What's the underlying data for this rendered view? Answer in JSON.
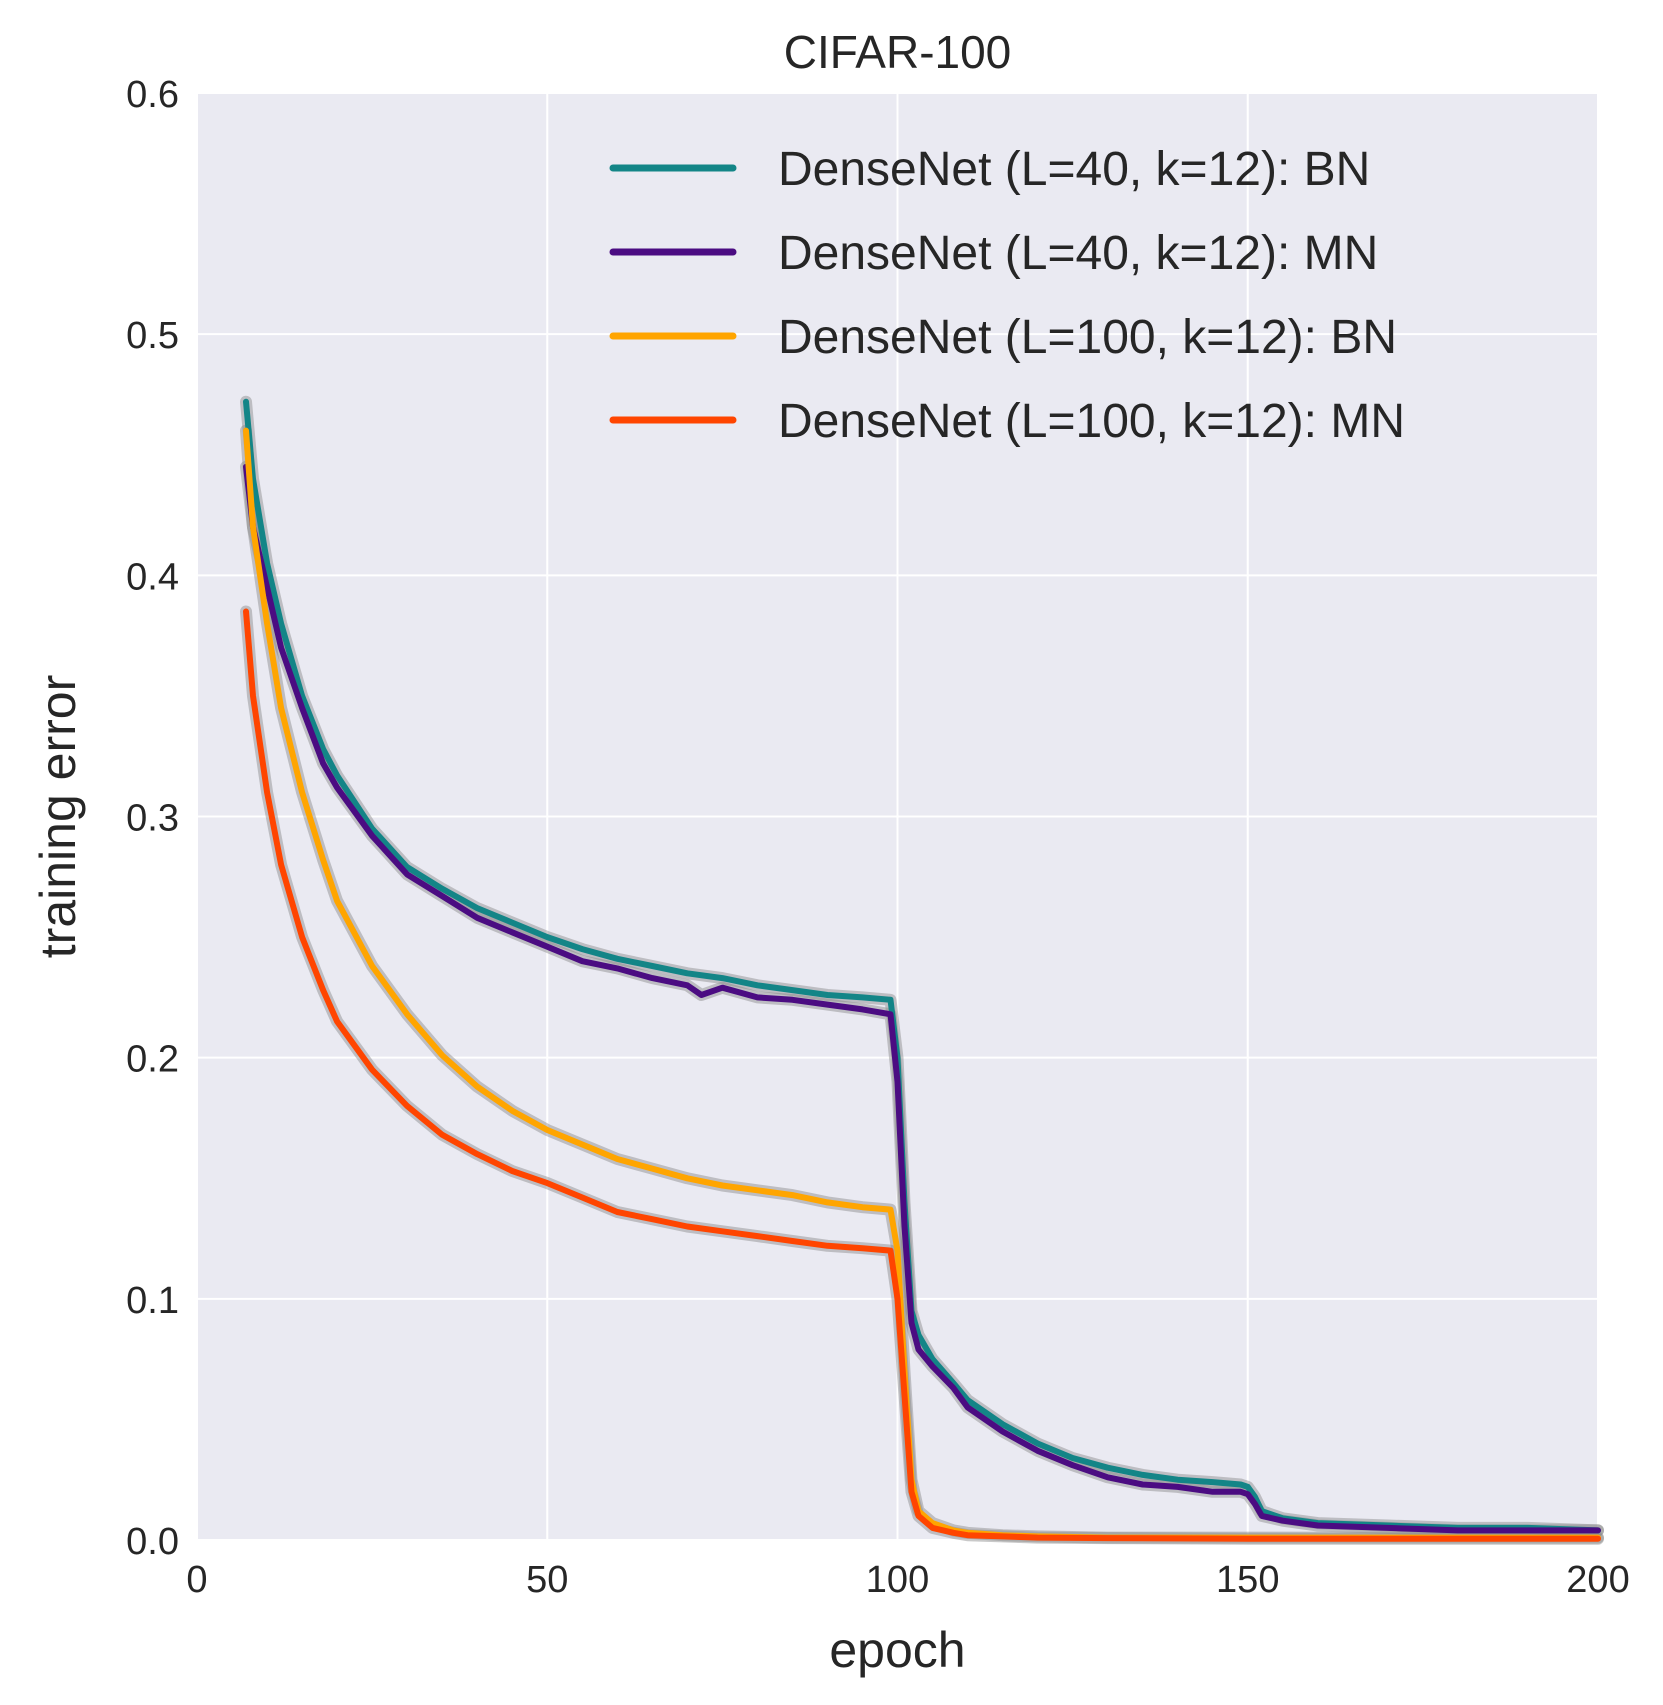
{
  "chart_data": {
    "type": "line",
    "title": "CIFAR-100",
    "xlabel": "epoch",
    "ylabel": "training error",
    "xlim": [
      0,
      200
    ],
    "ylim": [
      0.0,
      0.6
    ],
    "xticks": [
      0,
      50,
      100,
      150,
      200
    ],
    "xtick_labels": [
      "0",
      "50",
      "100",
      "150",
      "200"
    ],
    "yticks": [
      0.0,
      0.1,
      0.2,
      0.3,
      0.4,
      0.5,
      0.6
    ],
    "ytick_labels": [
      "0.0",
      "0.1",
      "0.2",
      "0.3",
      "0.4",
      "0.5",
      "0.6"
    ],
    "grid": true,
    "background": "#eaeaf2",
    "legend_position": "top-right",
    "series": [
      {
        "name": "DenseNet (L=40, k=12): BN",
        "color": "#138587",
        "x": [
          7,
          8,
          10,
          12,
          15,
          18,
          20,
          25,
          30,
          35,
          40,
          45,
          50,
          55,
          60,
          65,
          70,
          75,
          80,
          85,
          90,
          95,
          99,
          100,
          101,
          102,
          103,
          105,
          108,
          110,
          115,
          120,
          125,
          130,
          135,
          140,
          145,
          149,
          150,
          151,
          152,
          155,
          160,
          170,
          180,
          190,
          200
        ],
        "y": [
          0.472,
          0.44,
          0.405,
          0.38,
          0.35,
          0.328,
          0.317,
          0.295,
          0.279,
          0.27,
          0.262,
          0.256,
          0.25,
          0.245,
          0.241,
          0.238,
          0.235,
          0.233,
          0.23,
          0.228,
          0.226,
          0.225,
          0.224,
          0.2,
          0.14,
          0.095,
          0.085,
          0.075,
          0.065,
          0.058,
          0.048,
          0.04,
          0.034,
          0.03,
          0.027,
          0.025,
          0.024,
          0.023,
          0.022,
          0.018,
          0.012,
          0.009,
          0.007,
          0.006,
          0.005,
          0.005,
          0.004
        ]
      },
      {
        "name": "DenseNet (L=40, k=12): MN",
        "color": "#4b0c82",
        "x": [
          7,
          8,
          10,
          12,
          15,
          18,
          20,
          25,
          30,
          35,
          40,
          45,
          50,
          55,
          60,
          65,
          70,
          72,
          75,
          80,
          85,
          90,
          95,
          99,
          100,
          101,
          102,
          103,
          105,
          108,
          110,
          115,
          120,
          125,
          130,
          135,
          140,
          145,
          149,
          150,
          151,
          152,
          155,
          160,
          170,
          180,
          190,
          200
        ],
        "y": [
          0.445,
          0.42,
          0.395,
          0.37,
          0.345,
          0.322,
          0.312,
          0.292,
          0.276,
          0.267,
          0.258,
          0.252,
          0.246,
          0.24,
          0.237,
          0.233,
          0.23,
          0.226,
          0.229,
          0.225,
          0.224,
          0.222,
          0.22,
          0.218,
          0.19,
          0.13,
          0.09,
          0.079,
          0.072,
          0.063,
          0.055,
          0.045,
          0.037,
          0.031,
          0.026,
          0.023,
          0.022,
          0.02,
          0.02,
          0.019,
          0.015,
          0.01,
          0.008,
          0.006,
          0.005,
          0.004,
          0.004,
          0.004
        ]
      },
      {
        "name": "DenseNet (L=100, k=12): BN",
        "color": "#ffa500",
        "x": [
          7,
          8,
          10,
          12,
          15,
          18,
          20,
          25,
          30,
          35,
          40,
          45,
          50,
          55,
          60,
          65,
          70,
          75,
          80,
          85,
          90,
          95,
          99,
          100,
          101,
          102,
          103,
          105,
          108,
          110,
          115,
          120,
          130,
          150,
          200
        ],
        "y": [
          0.46,
          0.42,
          0.38,
          0.345,
          0.31,
          0.282,
          0.265,
          0.238,
          0.218,
          0.201,
          0.188,
          0.178,
          0.17,
          0.164,
          0.158,
          0.154,
          0.15,
          0.147,
          0.145,
          0.143,
          0.14,
          0.138,
          0.137,
          0.12,
          0.07,
          0.025,
          0.012,
          0.007,
          0.004,
          0.003,
          0.002,
          0.0015,
          0.001,
          0.001,
          0.001
        ]
      },
      {
        "name": "DenseNet (L=100, k=12): MN",
        "color": "#ff4500",
        "x": [
          7,
          8,
          10,
          12,
          15,
          18,
          20,
          25,
          30,
          35,
          40,
          45,
          50,
          55,
          60,
          65,
          70,
          75,
          80,
          85,
          90,
          95,
          99,
          100,
          101,
          102,
          103,
          105,
          108,
          110,
          115,
          120,
          130,
          150,
          200
        ],
        "y": [
          0.385,
          0.35,
          0.31,
          0.28,
          0.25,
          0.228,
          0.215,
          0.195,
          0.18,
          0.168,
          0.16,
          0.153,
          0.148,
          0.142,
          0.136,
          0.133,
          0.13,
          0.128,
          0.126,
          0.124,
          0.122,
          0.121,
          0.12,
          0.1,
          0.06,
          0.02,
          0.01,
          0.005,
          0.003,
          0.002,
          0.0015,
          0.001,
          0.0008,
          0.0005,
          0.0005
        ]
      }
    ]
  }
}
